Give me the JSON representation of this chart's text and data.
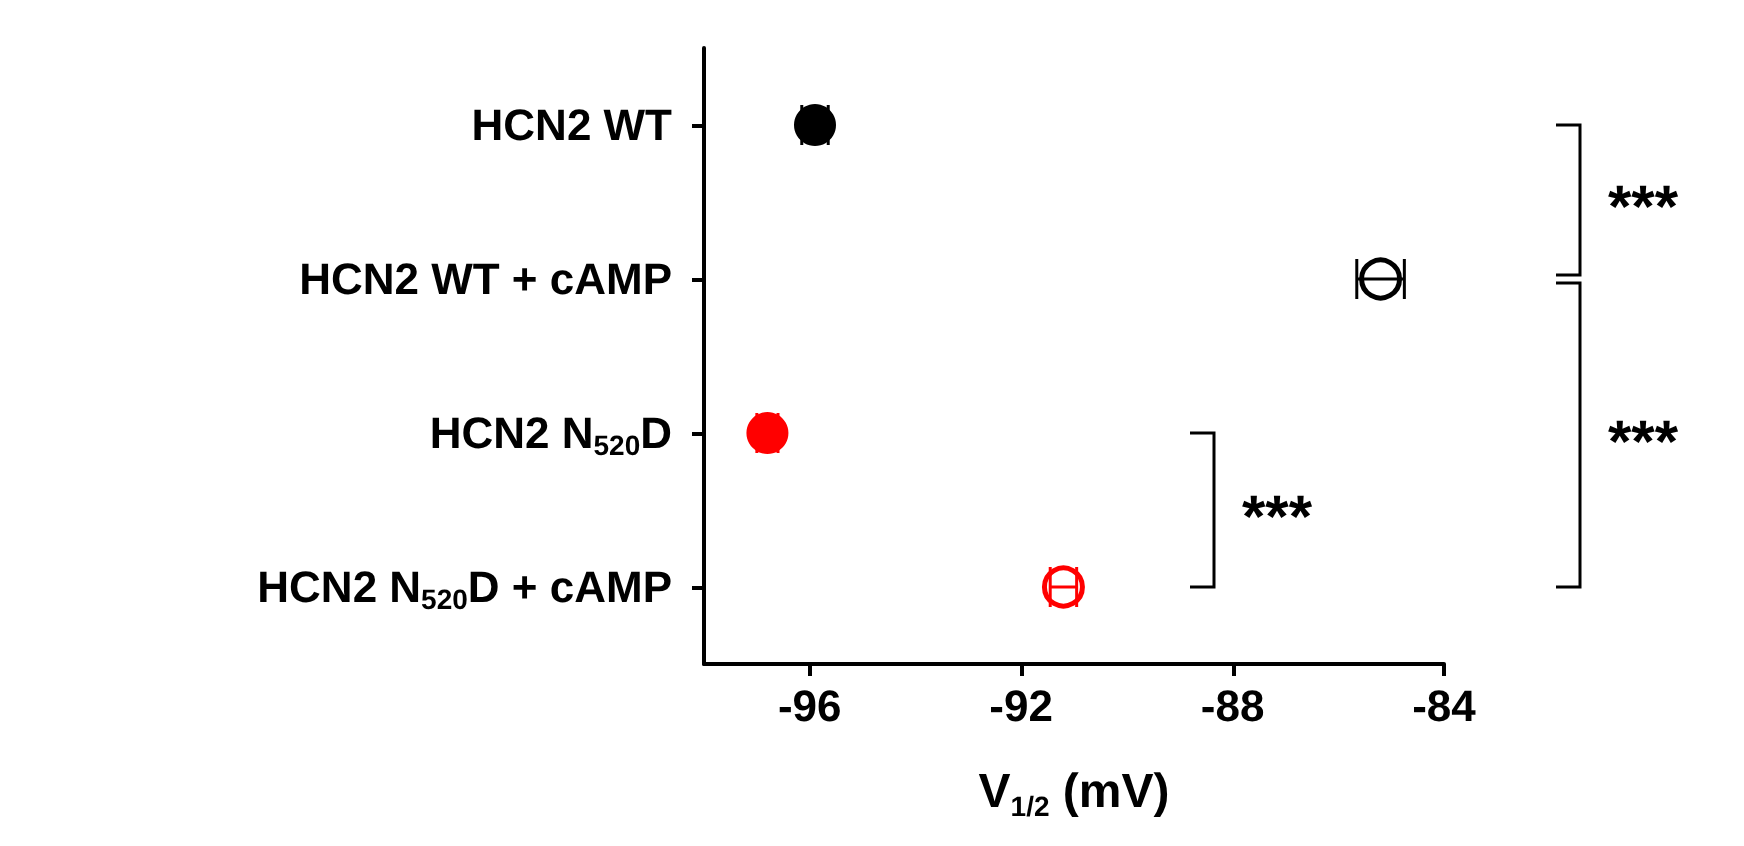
{
  "chart_data": {
    "type": "scatter",
    "orientation": "horizontal",
    "xlabel": "V$_{1/2}$ (mV)",
    "categories": [
      "HCN2 WT",
      "HCN2 WT + cAMP",
      "HCN2 N$_{520}$D",
      "HCN2 N$_{520}$D + cAMP"
    ],
    "series": [
      {
        "values": [
          -95.9,
          null,
          -96.8,
          null
        ],
        "errors": [
          0.25,
          null,
          0.2,
          null
        ],
        "colors": [
          "#000000",
          null,
          "#ff0000",
          null
        ],
        "marker": "circle"
      },
      {
        "values": [
          null,
          -85.2,
          null,
          -91.2
        ],
        "errors": [
          null,
          0.45,
          null,
          0.25
        ],
        "colors": [
          null,
          "#000000",
          null,
          "#ff0000"
        ],
        "marker": "circle"
      }
    ],
    "xlim": [
      -98,
      -84
    ],
    "xticks": [
      -96,
      -92,
      -88,
      -84
    ],
    "grid": false,
    "annotations": [
      "***",
      "***",
      "***"
    ]
  }
}
